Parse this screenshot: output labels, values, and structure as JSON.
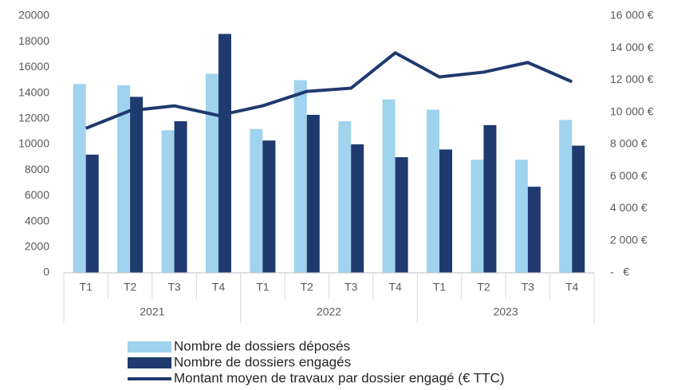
{
  "chart_data": {
    "type": "bar-line",
    "categories": [
      "T1",
      "T2",
      "T3",
      "T4",
      "T1",
      "T2",
      "T3",
      "T4",
      "T1",
      "T2",
      "T3",
      "T4"
    ],
    "years": [
      "2021",
      "2022",
      "2023"
    ],
    "series": [
      {
        "name": "Nombre de dossiers déposés",
        "type": "bar",
        "color": "#9fd3ee",
        "values": [
          14700,
          14600,
          11100,
          15500,
          11200,
          15000,
          11800,
          13500,
          12700,
          8800,
          8800,
          11900
        ]
      },
      {
        "name": "Nombre de dossiers engagés",
        "type": "bar",
        "color": "#1f3a6e",
        "values": [
          9200,
          13700,
          11800,
          18600,
          10300,
          12300,
          10000,
          9000,
          9600,
          11500,
          6700,
          9900
        ]
      },
      {
        "name": "Montant moyen de travaux par dossier engagé (€ TTC)",
        "type": "line",
        "axis": "y2",
        "color": "#1f3a6e",
        "values": [
          9000,
          10100,
          10400,
          9800,
          10400,
          11300,
          11500,
          13700,
          12200,
          12500,
          13100,
          11900
        ]
      }
    ],
    "ylim": [
      0,
      20000
    ],
    "yticks": [
      0,
      2000,
      4000,
      6000,
      8000,
      10000,
      12000,
      14000,
      16000,
      18000,
      20000
    ],
    "y2lim": [
      0,
      16000
    ],
    "y2ticks": [
      {
        "value": 0,
        "label": "-   €"
      },
      {
        "value": 2000,
        "label": "2 000 €"
      },
      {
        "value": 4000,
        "label": "4 000 €"
      },
      {
        "value": 6000,
        "label": "6 000 €"
      },
      {
        "value": 8000,
        "label": "8 000 €"
      },
      {
        "value": 10000,
        "label": "10 000 €"
      },
      {
        "value": 12000,
        "label": "12 000 €"
      },
      {
        "value": 14000,
        "label": "14 000 €"
      },
      {
        "value": 16000,
        "label": "16 000 €"
      }
    ],
    "grid": false,
    "legend": "bottom"
  }
}
